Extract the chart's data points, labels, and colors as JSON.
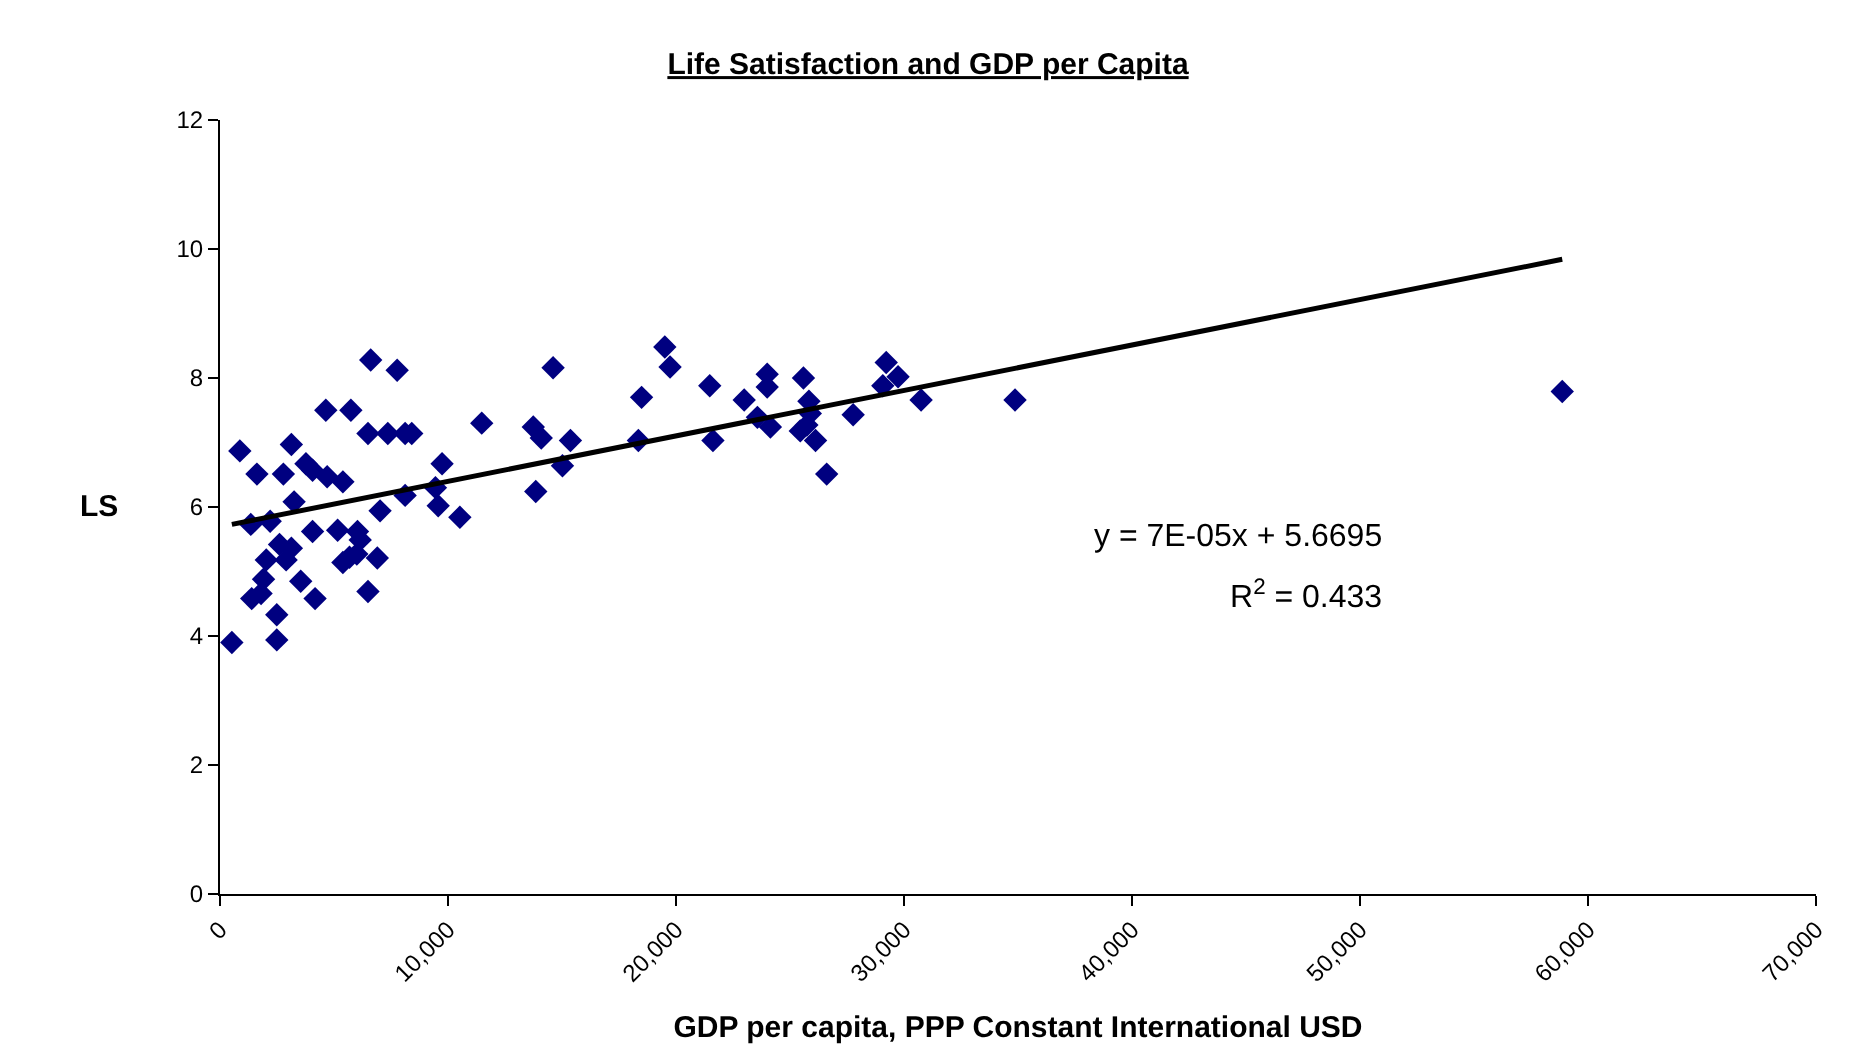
{
  "chart_data": {
    "type": "scatter",
    "title": "Life Satisfaction and GDP per Capita",
    "xlabel": "GDP per capita, PPP Constant International USD",
    "ylabel": "LS",
    "xlim": [
      0,
      70000
    ],
    "ylim": [
      0,
      12
    ],
    "xticks": [
      0,
      {
        "value": 10000,
        "label": "10,000"
      },
      {
        "value": 20000,
        "label": "20,000"
      },
      {
        "value": 30000,
        "label": "30,000"
      },
      {
        "value": 40000,
        "label": "40,000"
      },
      {
        "value": 50000,
        "label": "50,000"
      },
      {
        "value": 60000,
        "label": "60,000"
      },
      {
        "value": 70000,
        "label": "70,000"
      }
    ],
    "yticks": [
      0,
      2,
      4,
      6,
      8,
      10,
      12
    ],
    "marker": "diamond",
    "annotations": [
      "y = 7E-05x + 5.6695",
      "R$^{2}$ = 0.433"
    ],
    "series": [
      {
        "color": "#000080",
        "x": [
          520,
          870,
          1620,
          1350,
          2200,
          1390,
          1800,
          1910,
          2030,
          2490,
          2490,
          2780,
          2610,
          2900,
          3130,
          3250,
          3130,
          3540,
          3770,
          4060,
          4060,
          4170,
          4640,
          4700,
          5390,
          5160,
          5390,
          5740,
          5680,
          6030,
          6150,
          6000,
          6490,
          6610,
          6490,
          6900,
          7020,
          7360,
          7770,
          8120,
          8410,
          8120,
          9450,
          9570,
          9740,
          10520,
          11480,
          13740,
          14090,
          13850,
          14610,
          15020,
          15370,
          18350,
          18490,
          19510,
          19740,
          21480,
          21620,
          22990,
          23570,
          24000,
          24000,
          24140,
          25590,
          25830,
          25890,
          25740,
          25450,
          26120,
          26610,
          27770,
          29220,
          29070,
          29740,
          30750,
          34870,
          58870
        ],
        "values": [
          3.9,
          6.87,
          6.51,
          5.73,
          5.78,
          4.58,
          4.66,
          4.88,
          5.18,
          4.33,
          3.94,
          6.51,
          5.42,
          5.18,
          6.97,
          6.08,
          5.36,
          4.85,
          6.67,
          6.57,
          5.62,
          4.58,
          7.5,
          6.47,
          6.39,
          5.64,
          5.14,
          7.5,
          5.22,
          5.62,
          5.49,
          5.27,
          4.69,
          8.28,
          7.14,
          5.21,
          5.94,
          7.14,
          8.12,
          7.14,
          7.14,
          6.18,
          6.3,
          6.02,
          6.67,
          5.84,
          7.3,
          7.24,
          7.07,
          6.24,
          8.16,
          6.64,
          7.03,
          7.03,
          7.7,
          8.48,
          8.17,
          7.88,
          7.03,
          7.66,
          7.39,
          8.06,
          7.86,
          7.24,
          8.0,
          7.64,
          7.45,
          7.27,
          7.18,
          7.03,
          6.51,
          7.43,
          8.24,
          7.88,
          8.02,
          7.66,
          7.66,
          7.79
        ]
      },
      {
        "type": "line",
        "color": "#000000",
        "line_style": "solid",
        "marker": "none",
        "x": [
          520,
          58870
        ],
        "values": [
          5.73,
          9.84
        ]
      }
    ]
  }
}
